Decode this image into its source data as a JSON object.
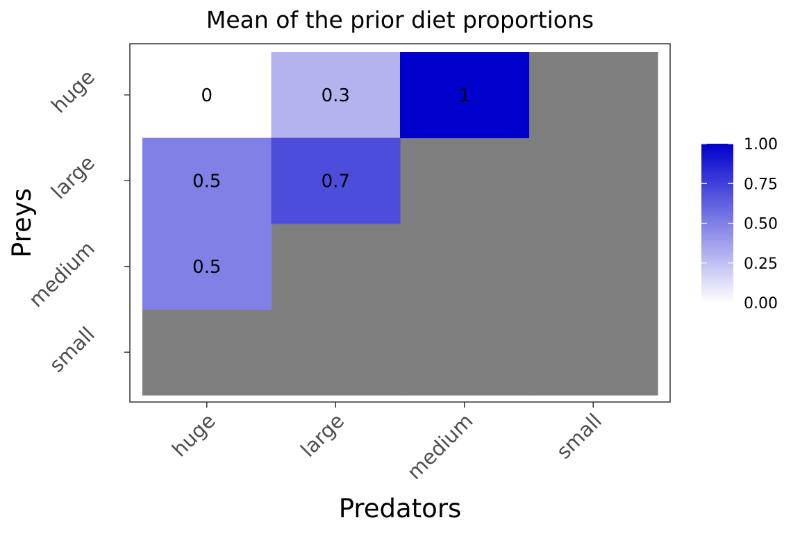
{
  "chart_data": {
    "type": "heatmap",
    "title": "Mean of the prior diet proportions",
    "xlabel": "Predators",
    "ylabel": "Preys",
    "x_categories": [
      "huge",
      "large",
      "medium",
      "small"
    ],
    "y_categories": [
      "huge",
      "large",
      "medium",
      "small"
    ],
    "cells": [
      {
        "x": "huge",
        "y": "huge",
        "value": 0,
        "label": "0"
      },
      {
        "x": "large",
        "y": "huge",
        "value": 0.3,
        "label": "0.3"
      },
      {
        "x": "medium",
        "y": "huge",
        "value": 1,
        "label": "1"
      },
      {
        "x": "huge",
        "y": "large",
        "value": 0.5,
        "label": "0.5"
      },
      {
        "x": "large",
        "y": "large",
        "value": 0.7,
        "label": "0.7"
      },
      {
        "x": "huge",
        "y": "medium",
        "value": 0.5,
        "label": "0.5"
      }
    ],
    "na_color": "#7f7f7f",
    "color_scale": {
      "low": "#ffffff",
      "high": "#0000cd",
      "range": [
        0,
        1
      ],
      "breaks": [
        0,
        0.25,
        0.5,
        0.75,
        1
      ],
      "break_labels": [
        "0.00",
        "0.25",
        "0.50",
        "0.75",
        "1.00"
      ]
    },
    "legend_position": "right",
    "grid": false
  }
}
